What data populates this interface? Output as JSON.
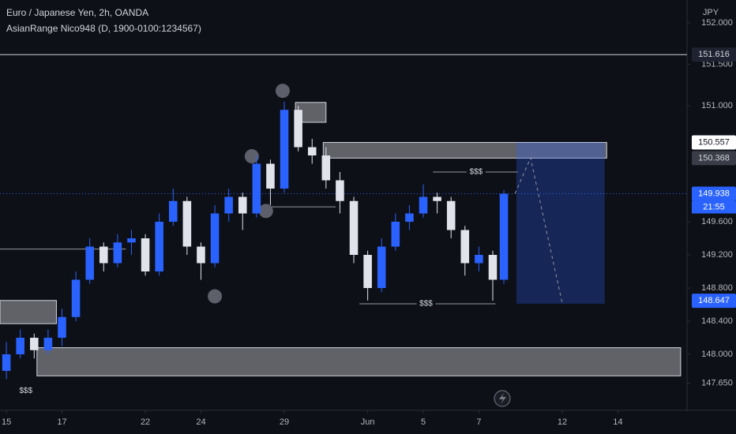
{
  "chart_data": {
    "type": "candlestick",
    "title": "Euro / Japanese Yen, 2h, OANDA",
    "subtitle": "AsianRange Nico948 (D, 1900-0100:1234567)",
    "currency": "JPY",
    "xlim": [
      -0.23,
      24.49
    ],
    "ylim": [
      147.324,
      152.276
    ],
    "xticks": [
      {
        "value": 0,
        "label": "15"
      },
      {
        "value": 2,
        "label": "17"
      },
      {
        "value": 5,
        "label": "22"
      },
      {
        "value": 7,
        "label": "24"
      },
      {
        "value": 10,
        "label": "29"
      },
      {
        "value": 13,
        "label": "Jun"
      },
      {
        "value": 15,
        "label": "5"
      },
      {
        "value": 17,
        "label": "7"
      },
      {
        "value": 20,
        "label": "12"
      },
      {
        "value": 22,
        "label": "14"
      }
    ],
    "yticks": [
      {
        "value": 152,
        "label": "152.000"
      },
      {
        "value": 151.5,
        "label": "151.500"
      },
      {
        "value": 151,
        "label": "151.000"
      },
      {
        "value": 149.6,
        "label": "149.600"
      },
      {
        "value": 149.2,
        "label": "149.200"
      },
      {
        "value": 148.8,
        "label": "148.800"
      },
      {
        "value": 148.4,
        "label": "148.400"
      },
      {
        "value": 148,
        "label": "148.000"
      },
      {
        "value": 147.65,
        "label": "147.650"
      }
    ],
    "up_color": "#2962ff",
    "down_color": "#e0e3eb",
    "x": [
      0,
      0.5,
      1,
      1.5,
      2,
      2.5,
      3,
      3.5,
      4,
      4.5,
      5,
      5.5,
      6,
      6.5,
      7,
      7.5,
      8,
      8.5,
      9,
      9.5,
      10,
      10.5,
      11,
      11.5,
      12,
      12.5,
      13,
      13.5,
      14,
      14.5,
      15,
      15.5,
      16,
      16.5,
      17,
      17.5,
      17.9
    ],
    "open": [
      147.8,
      148.0,
      148.2,
      148.05,
      148.2,
      148.45,
      148.9,
      149.3,
      149.1,
      149.35,
      149.4,
      149.0,
      149.6,
      149.85,
      149.3,
      149.1,
      149.7,
      149.9,
      149.7,
      150.3,
      150.0,
      150.95,
      150.5,
      150.4,
      150.1,
      149.85,
      149.2,
      148.8,
      149.3,
      149.6,
      149.7,
      149.9,
      149.85,
      149.5,
      149.1,
      149.2,
      148.9
    ],
    "high": [
      148.15,
      148.3,
      148.25,
      148.3,
      148.55,
      149.0,
      149.4,
      149.35,
      149.45,
      149.5,
      149.45,
      149.7,
      150.0,
      149.9,
      149.35,
      149.8,
      150.0,
      149.95,
      150.4,
      150.35,
      151.05,
      151.0,
      150.6,
      150.5,
      150.2,
      149.9,
      149.25,
      149.4,
      149.7,
      149.8,
      150.05,
      149.95,
      149.9,
      149.55,
      149.3,
      149.25,
      149.98
    ],
    "low": [
      147.7,
      147.95,
      147.95,
      148.0,
      148.1,
      148.4,
      148.85,
      149.0,
      149.05,
      149.2,
      148.95,
      148.95,
      149.55,
      149.2,
      148.9,
      149.05,
      149.6,
      149.5,
      149.65,
      149.8,
      149.95,
      150.45,
      150.3,
      150.0,
      149.7,
      149.1,
      148.65,
      148.75,
      149.25,
      149.5,
      149.65,
      149.7,
      149.4,
      148.95,
      149.0,
      148.647,
      148.85
    ],
    "close": [
      148.0,
      148.2,
      148.05,
      148.2,
      148.45,
      148.9,
      149.3,
      149.1,
      149.35,
      149.4,
      149.0,
      149.6,
      149.85,
      149.3,
      149.1,
      149.7,
      149.9,
      149.7,
      150.3,
      150.0,
      150.95,
      150.5,
      150.4,
      150.1,
      149.85,
      149.2,
      148.8,
      149.3,
      149.6,
      149.7,
      149.9,
      149.85,
      149.5,
      149.1,
      149.2,
      148.9,
      149.938
    ],
    "zones": [
      {
        "x": [
          -0.23,
          1.8
        ],
        "y": [
          148.65,
          148.37
        ]
      },
      {
        "x": [
          1.1,
          24.26
        ],
        "y": [
          148.08,
          147.74
        ]
      },
      {
        "x": [
          10.4,
          11.5
        ],
        "y": [
          151.04,
          150.8
        ]
      },
      {
        "x": [
          11.4,
          21.6
        ],
        "y": [
          150.557,
          150.368
        ]
      }
    ],
    "levels": [
      {
        "x": [
          -0.23,
          24.49
        ],
        "y": 151.616
      },
      {
        "x": [
          -0.23,
          4.3
        ],
        "y": 149.27
      },
      {
        "x": [
          9.3,
          11.85
        ],
        "y": 149.78
      },
      {
        "x": [
          12.7,
          17.6
        ],
        "y": 148.61
      },
      {
        "x": [
          15.35,
          18.4
        ],
        "y": 150.2
      }
    ],
    "liquidity": [
      {
        "label": "$$$",
        "x": 0.7,
        "y": 147.56
      },
      {
        "label": "$$$",
        "x": 15.1,
        "y": 148.61
      },
      {
        "label": "$$$",
        "x": 16.9,
        "y": 150.2
      }
    ],
    "swing_points": [
      {
        "x": 9.94,
        "y": 151.18
      },
      {
        "x": 8.83,
        "y": 150.39
      },
      {
        "x": 9.34,
        "y": 149.73
      },
      {
        "x": 7.5,
        "y": 148.7
      }
    ],
    "target_box": {
      "x": [
        18.35,
        21.53
      ],
      "y": [
        150.557,
        148.61
      ]
    },
    "projection": {
      "x": [
        18.3,
        18.86,
        19.99
      ],
      "y": [
        149.94,
        150.37,
        148.63
      ]
    },
    "price_tags": [
      {
        "value": 151.616,
        "bg": "#1f2230",
        "fg": "#d1d4dc"
      },
      {
        "value": 150.557,
        "bg": "#ffffff",
        "fg": "#131722"
      },
      {
        "value": 150.368,
        "bg": "#3a3d47",
        "fg": "#d1d4dc"
      },
      {
        "value": 149.938,
        "bg": "#2962ff",
        "fg": "#ffffff"
      },
      {
        "value": 148.647,
        "bg": "#2962ff",
        "fg": "#ffffff"
      }
    ],
    "countdown": "21:55"
  }
}
